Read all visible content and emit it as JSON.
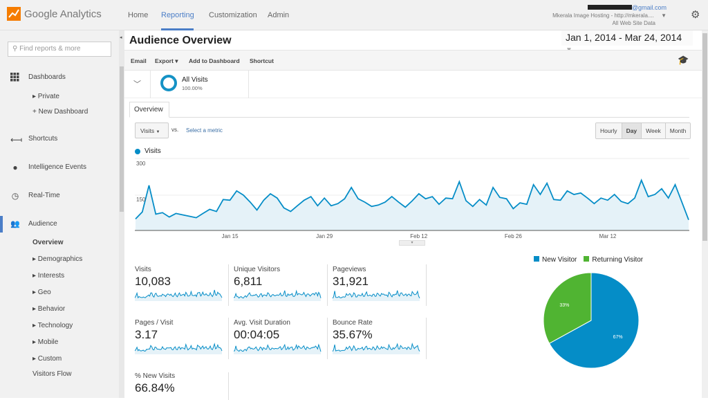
{
  "app": {
    "name": "Google Analytics"
  },
  "nav": {
    "items": [
      "Home",
      "Reporting",
      "Customization",
      "Admin"
    ],
    "active": "Reporting"
  },
  "account": {
    "email": "@gmail.com",
    "property": "Mkerala Image Hosting - http://mkerala....",
    "view": "All Web Site Data"
  },
  "sidebar": {
    "search_placeholder": "Find reports & more",
    "dashboards": "Dashboards",
    "private": "▸ Private",
    "new_dashboard": "+ New Dashboard",
    "shortcuts": "Shortcuts",
    "intelligence": "Intelligence Events",
    "realtime": "Real-Time",
    "audience": "Audience",
    "audience_items": [
      "Overview",
      "▸ Demographics",
      "▸ Interests",
      "▸ Geo",
      "▸ Behavior",
      "▸ Technology",
      "▸ Mobile",
      "▸ Custom",
      "Visitors Flow"
    ]
  },
  "page": {
    "title": "Audience Overview",
    "date_range": "Jan 1, 2014 - Mar 24, 2014"
  },
  "toolbar": {
    "email": "Email",
    "export": "Export ▾",
    "add_dashboard": "Add to Dashboard",
    "shortcut": "Shortcut"
  },
  "segment": {
    "name": "All Visits",
    "pct": "100.00%"
  },
  "tabs": {
    "overview": "Overview"
  },
  "controls": {
    "metric": "Visits",
    "vs": "vs.",
    "select_metric": "Select a metric",
    "granularity": [
      "Hourly",
      "Day",
      "Week",
      "Month"
    ],
    "selected_granularity": "Day"
  },
  "chart_data": {
    "type": "area",
    "series": [
      {
        "name": "Visits",
        "color": "#058dc7",
        "values": [
          48,
          77,
          188,
          68,
          74,
          56,
          71,
          65,
          59,
          53,
          71,
          88,
          79,
          129,
          126,
          165,
          147,
          118,
          85,
          126,
          153,
          135,
          94,
          79,
          103,
          126,
          141,
          103,
          135,
          103,
          112,
          132,
          179,
          132,
          118,
          100,
          106,
          118,
          141,
          118,
          97,
          123,
          153,
          132,
          141,
          109,
          135,
          132,
          203,
          124,
          100,
          129,
          106,
          179,
          138,
          132,
          91,
          115,
          109,
          191,
          150,
          197,
          129,
          126,
          165,
          150,
          156,
          135,
          112,
          135,
          126,
          150,
          121,
          112,
          135,
          209,
          141,
          150,
          174,
          135,
          191,
          118,
          44
        ]
      }
    ],
    "x_start": "Jan 1, 2014",
    "x_end": "Mar 24, 2014",
    "x_ticks": [
      "Jan 15",
      "Jan 29",
      "Feb 12",
      "Feb 26",
      "Mar 12"
    ],
    "y_ticks": [
      "300",
      "150"
    ],
    "ylim": [
      0,
      300
    ],
    "grid": true,
    "legend": "top-left"
  },
  "metrics": [
    {
      "label": "Visits",
      "value": "10,083"
    },
    {
      "label": "Unique Visitors",
      "value": "6,811"
    },
    {
      "label": "Pageviews",
      "value": "31,921"
    },
    {
      "label": "Pages / Visit",
      "value": "3.17"
    },
    {
      "label": "Avg. Visit Duration",
      "value": "00:04:05"
    },
    {
      "label": "Bounce Rate",
      "value": "35.67%"
    },
    {
      "label": "% New Visits",
      "value": "66.84%"
    }
  ],
  "pie": {
    "type": "pie",
    "slices": [
      {
        "name": "New Visitor",
        "value": 67,
        "label": "67%",
        "color": "#058dc7"
      },
      {
        "name": "Returning Visitor",
        "value": 33,
        "label": "33%",
        "color": "#50b432"
      }
    ]
  }
}
